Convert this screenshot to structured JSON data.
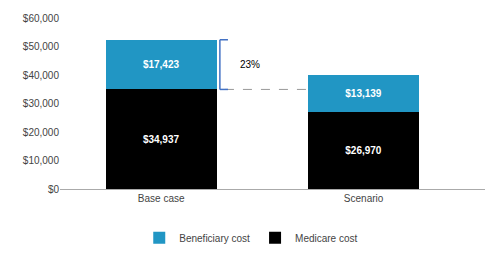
{
  "chart_data": {
    "type": "bar",
    "stacked": true,
    "categories": [
      "Base case",
      "Scenario"
    ],
    "series": [
      {
        "name": "Medicare cost",
        "color": "#000000",
        "values": [
          34937,
          26970
        ],
        "value_labels": [
          "$34,937",
          "$26,970"
        ]
      },
      {
        "name": "Beneficiary cost",
        "color": "#2196c4",
        "values": [
          17423,
          13139
        ],
        "value_labels": [
          "$17,423",
          "$13,139"
        ]
      }
    ],
    "data_labels": true,
    "ylim": [
      0,
      60000
    ],
    "yticks": [
      {
        "value": 0,
        "label": "$0"
      },
      {
        "value": 10000,
        "label": "$10,000"
      },
      {
        "value": 20000,
        "label": "$20,000"
      },
      {
        "value": 30000,
        "label": "$30,000"
      },
      {
        "value": 40000,
        "label": "$40,000"
      },
      {
        "value": 50000,
        "label": "$50,000"
      },
      {
        "value": 60000,
        "label": "$60,000"
      }
    ],
    "annotation": "23%",
    "grid": false,
    "legend": "bottom"
  }
}
